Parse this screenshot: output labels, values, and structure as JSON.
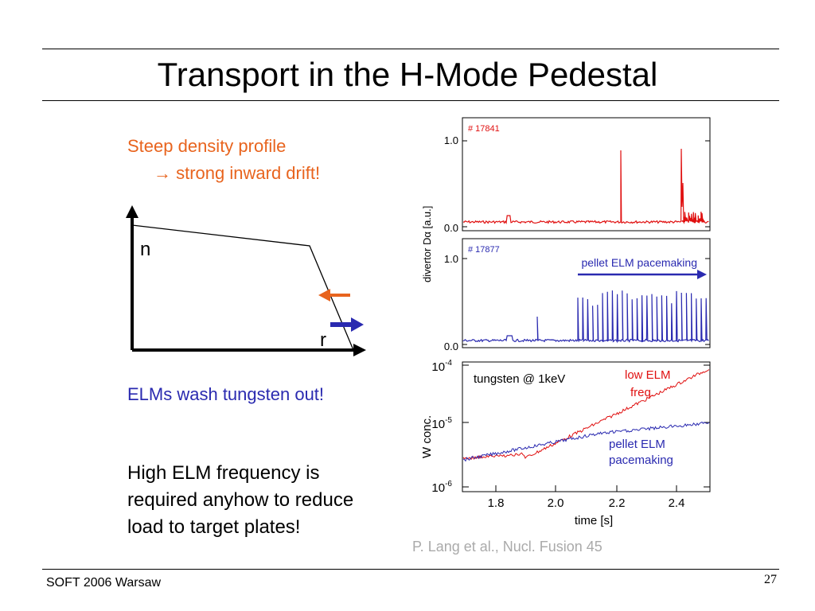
{
  "slide": {
    "title": "Transport in the H-Mode Pedestal",
    "page_number": "27",
    "footer": "SOFT 2006 Warsaw"
  },
  "left_text": {
    "line1": "Steep density profile",
    "line2": "→ strong inward drift!",
    "elms_wash": "ELMs wash tungsten out!",
    "high_elm": [
      "High ELM frequency is",
      "required anyhow to reduce",
      "load to target plates!"
    ]
  },
  "profile_diagram": {
    "y_label": "n",
    "x_label": "r"
  },
  "panels": {
    "y_label_top": "divertor Dα   [a.u.]",
    "panel1": {
      "shot": "# 17841",
      "ticks": [
        "1.0",
        "0.0"
      ]
    },
    "panel2": {
      "shot": "# 17877",
      "ticks": [
        "1.0",
        "0.0"
      ],
      "annotation": "pellet ELM pacemaking"
    },
    "panel3": {
      "label": "tungsten @ 1keV",
      "ylabel": "W conc.",
      "yticks": [
        {
          "base": "10",
          "exp": "-4"
        },
        {
          "base": "10",
          "exp": "-5"
        },
        {
          "base": "10",
          "exp": "-6"
        }
      ],
      "xticks": [
        "1.8",
        "2.0",
        "2.2",
        "2.4"
      ],
      "xlabel": "time [s]",
      "low_elm": [
        "low ELM",
        "freq."
      ],
      "pellet_elm": [
        "pellet ELM",
        "pacemaking"
      ]
    }
  },
  "citation": "P. Lang et al., Nucl. Fusion 45",
  "colors": {
    "orange": "#e8641e",
    "blue": "#2a2ab0",
    "red": "#e01010",
    "gray": "#aaaaaa"
  }
}
